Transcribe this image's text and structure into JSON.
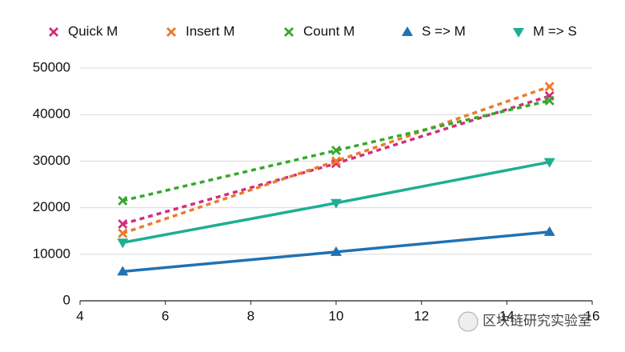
{
  "chart_data": {
    "type": "line",
    "x": [
      5,
      10,
      15
    ],
    "xlim": [
      4,
      16
    ],
    "xticks": [
      4,
      6,
      8,
      10,
      12,
      14,
      16
    ],
    "ylim": [
      0,
      50000
    ],
    "yticks": [
      0,
      10000,
      20000,
      30000,
      40000,
      50000
    ],
    "grid": true,
    "legend": "top",
    "series": [
      {
        "name": "Quick M",
        "color": "#d12f7c",
        "marker": "x",
        "dashed": true,
        "values": [
          16500,
          29500,
          44000
        ]
      },
      {
        "name": "Insert M",
        "color": "#ec7a2c",
        "marker": "x",
        "dashed": true,
        "values": [
          14500,
          30000,
          46000
        ]
      },
      {
        "name": "Count M",
        "color": "#36a82c",
        "marker": "x",
        "dashed": true,
        "values": [
          21500,
          32300,
          43000
        ]
      },
      {
        "name": "S => M",
        "color": "#1f72b4",
        "marker": "triangle-up",
        "dashed": false,
        "values": [
          6300,
          10500,
          14800
        ]
      },
      {
        "name": "M => S",
        "color": "#1fae94",
        "marker": "triangle-down",
        "dashed": false,
        "values": [
          12500,
          21000,
          29800
        ]
      }
    ]
  },
  "watermark": "区块链研究实验室"
}
